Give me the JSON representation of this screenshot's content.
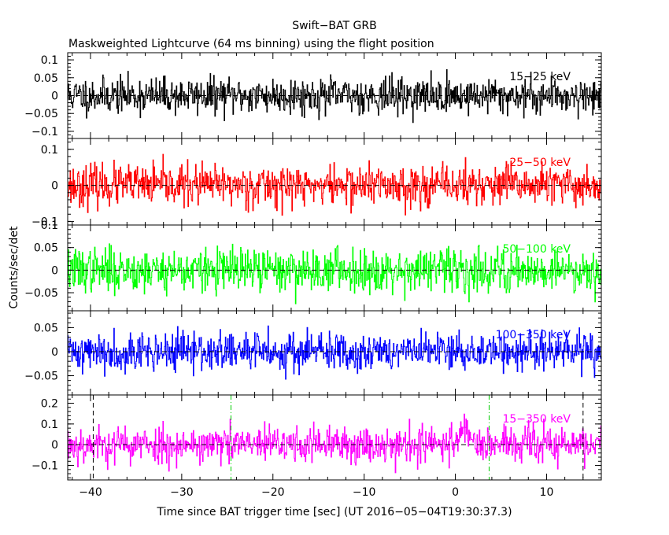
{
  "chart_data": {
    "type": "line",
    "title": "Swift−BAT GRB",
    "subtitle": "Maskweighted Lightcurve (64 ms binning) using the flight position",
    "xlabel": "Time since BAT trigger time [sec] (UT 2016−05−04T19:30:37.3)",
    "ylabel": "Counts/sec/det",
    "xlim": [
      -42.5,
      16.0
    ],
    "x_ticks": [
      -40,
      -30,
      -20,
      -10,
      0,
      10
    ],
    "x_tick_labels": [
      "−40",
      "−30",
      "−20",
      "−10",
      "0",
      "10"
    ],
    "bin_seconds": 0.064,
    "grid": false,
    "panels": [
      {
        "name": "15−25 keV",
        "color": "#000000",
        "ylim": [
          -0.12,
          0.12
        ],
        "y_ticks": [
          -0.1,
          -0.05,
          0,
          0.05,
          0.1
        ],
        "y_tick_labels": [
          "−0.1",
          "−0.05",
          "0",
          "0.05",
          "0.1"
        ],
        "noise_sigma": 0.025,
        "seed": 11
      },
      {
        "name": "25−50 keV",
        "color": "#ff0000",
        "ylim": [
          -0.11,
          0.13
        ],
        "y_ticks": [
          -0.1,
          0,
          0.1
        ],
        "y_tick_labels": [
          "−0.1",
          "0",
          "0.1"
        ],
        "noise_sigma": 0.028,
        "seed": 23
      },
      {
        "name": "50−100 keV",
        "color": "#00ff00",
        "ylim": [
          -0.09,
          0.1
        ],
        "y_ticks": [
          -0.05,
          0,
          0.05,
          0.1
        ],
        "y_tick_labels": [
          "−0.05",
          "0",
          "0.05",
          "0.1"
        ],
        "noise_sigma": 0.024,
        "seed": 37
      },
      {
        "name": "100−350 keV",
        "color": "#0000ff",
        "ylim": [
          -0.09,
          0.085
        ],
        "y_ticks": [
          -0.05,
          0,
          0.05
        ],
        "y_tick_labels": [
          "−0.05",
          "0",
          "0.05"
        ],
        "noise_sigma": 0.02,
        "seed": 41
      },
      {
        "name": "15−350 keV",
        "color": "#ff00ff",
        "ylim": [
          -0.17,
          0.24
        ],
        "y_ticks": [
          -0.1,
          0,
          0.1,
          0.2
        ],
        "y_tick_labels": [
          "−0.1",
          "0",
          "0.1",
          "0.2"
        ],
        "noise_sigma": 0.045,
        "seed": 53,
        "bump": {
          "center": 1.0,
          "width": 0.9,
          "height": 0.08
        }
      }
    ],
    "zero_line": {
      "style": "dashed",
      "color": "#000000"
    },
    "vertical_markers": [
      {
        "x": -24.6,
        "color": "#00cc00",
        "style": "dash-dot",
        "panel": 4
      },
      {
        "x": 3.7,
        "color": "#00cc00",
        "style": "dash-dot",
        "panel": 4
      },
      {
        "x": -39.7,
        "color": "#000000",
        "style": "dashed",
        "panel": 4
      },
      {
        "x": 14.0,
        "color": "#000000",
        "style": "dashed",
        "panel": 4
      }
    ]
  }
}
